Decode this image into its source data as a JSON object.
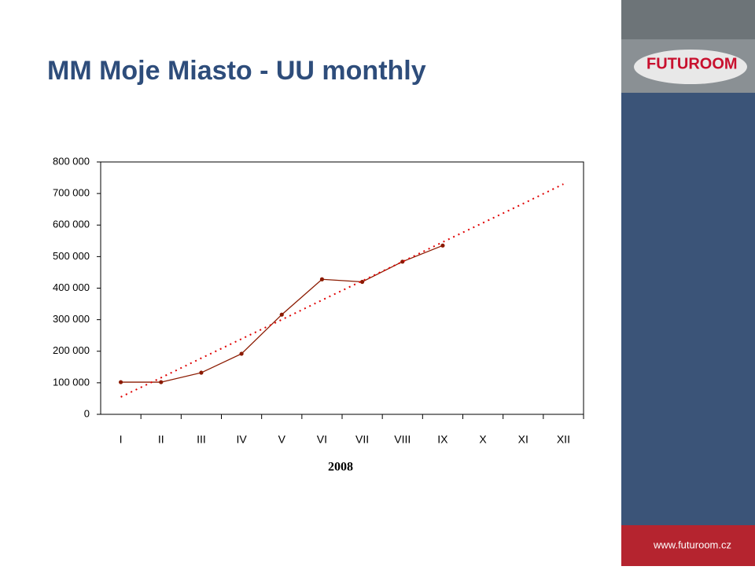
{
  "title": "MM Moje Miasto - UU monthly",
  "sidebar": {
    "logo": "FUTUROOM",
    "url": "www.futuroom.cz"
  },
  "chart_data": {
    "type": "line",
    "categories": [
      "I",
      "II",
      "III",
      "IV",
      "V",
      "VI",
      "VII",
      "VIII",
      "IX",
      "X",
      "XI",
      "XII"
    ],
    "x_label": "2008",
    "series": [
      {
        "color": "#8b1a00",
        "style": "solid",
        "markers": true,
        "values": [
          102000,
          102000,
          132000,
          192000,
          316000,
          428000,
          420000,
          484000,
          535000,
          null,
          null,
          null
        ]
      },
      {
        "color": "#e00000",
        "style": "dotted",
        "markers": false,
        "values": [
          55000,
          116000,
          178000,
          239000,
          300000,
          362000,
          423000,
          484000,
          546000,
          607000,
          668000,
          730000
        ]
      }
    ],
    "ylim": [
      0,
      800000
    ],
    "yticks": [
      0,
      {
        "value": 100000,
        "label": "100 000"
      },
      {
        "value": 200000,
        "label": "200 000"
      },
      {
        "value": 300000,
        "label": "300 000"
      },
      {
        "value": 400000,
        "label": "400 000"
      },
      {
        "value": 500000,
        "label": "500 000"
      },
      {
        "value": 600000,
        "label": "600 000"
      },
      {
        "value": 700000,
        "label": "700 000"
      },
      {
        "value": 800000,
        "label": "800 000"
      }
    ],
    "grid": false
  }
}
